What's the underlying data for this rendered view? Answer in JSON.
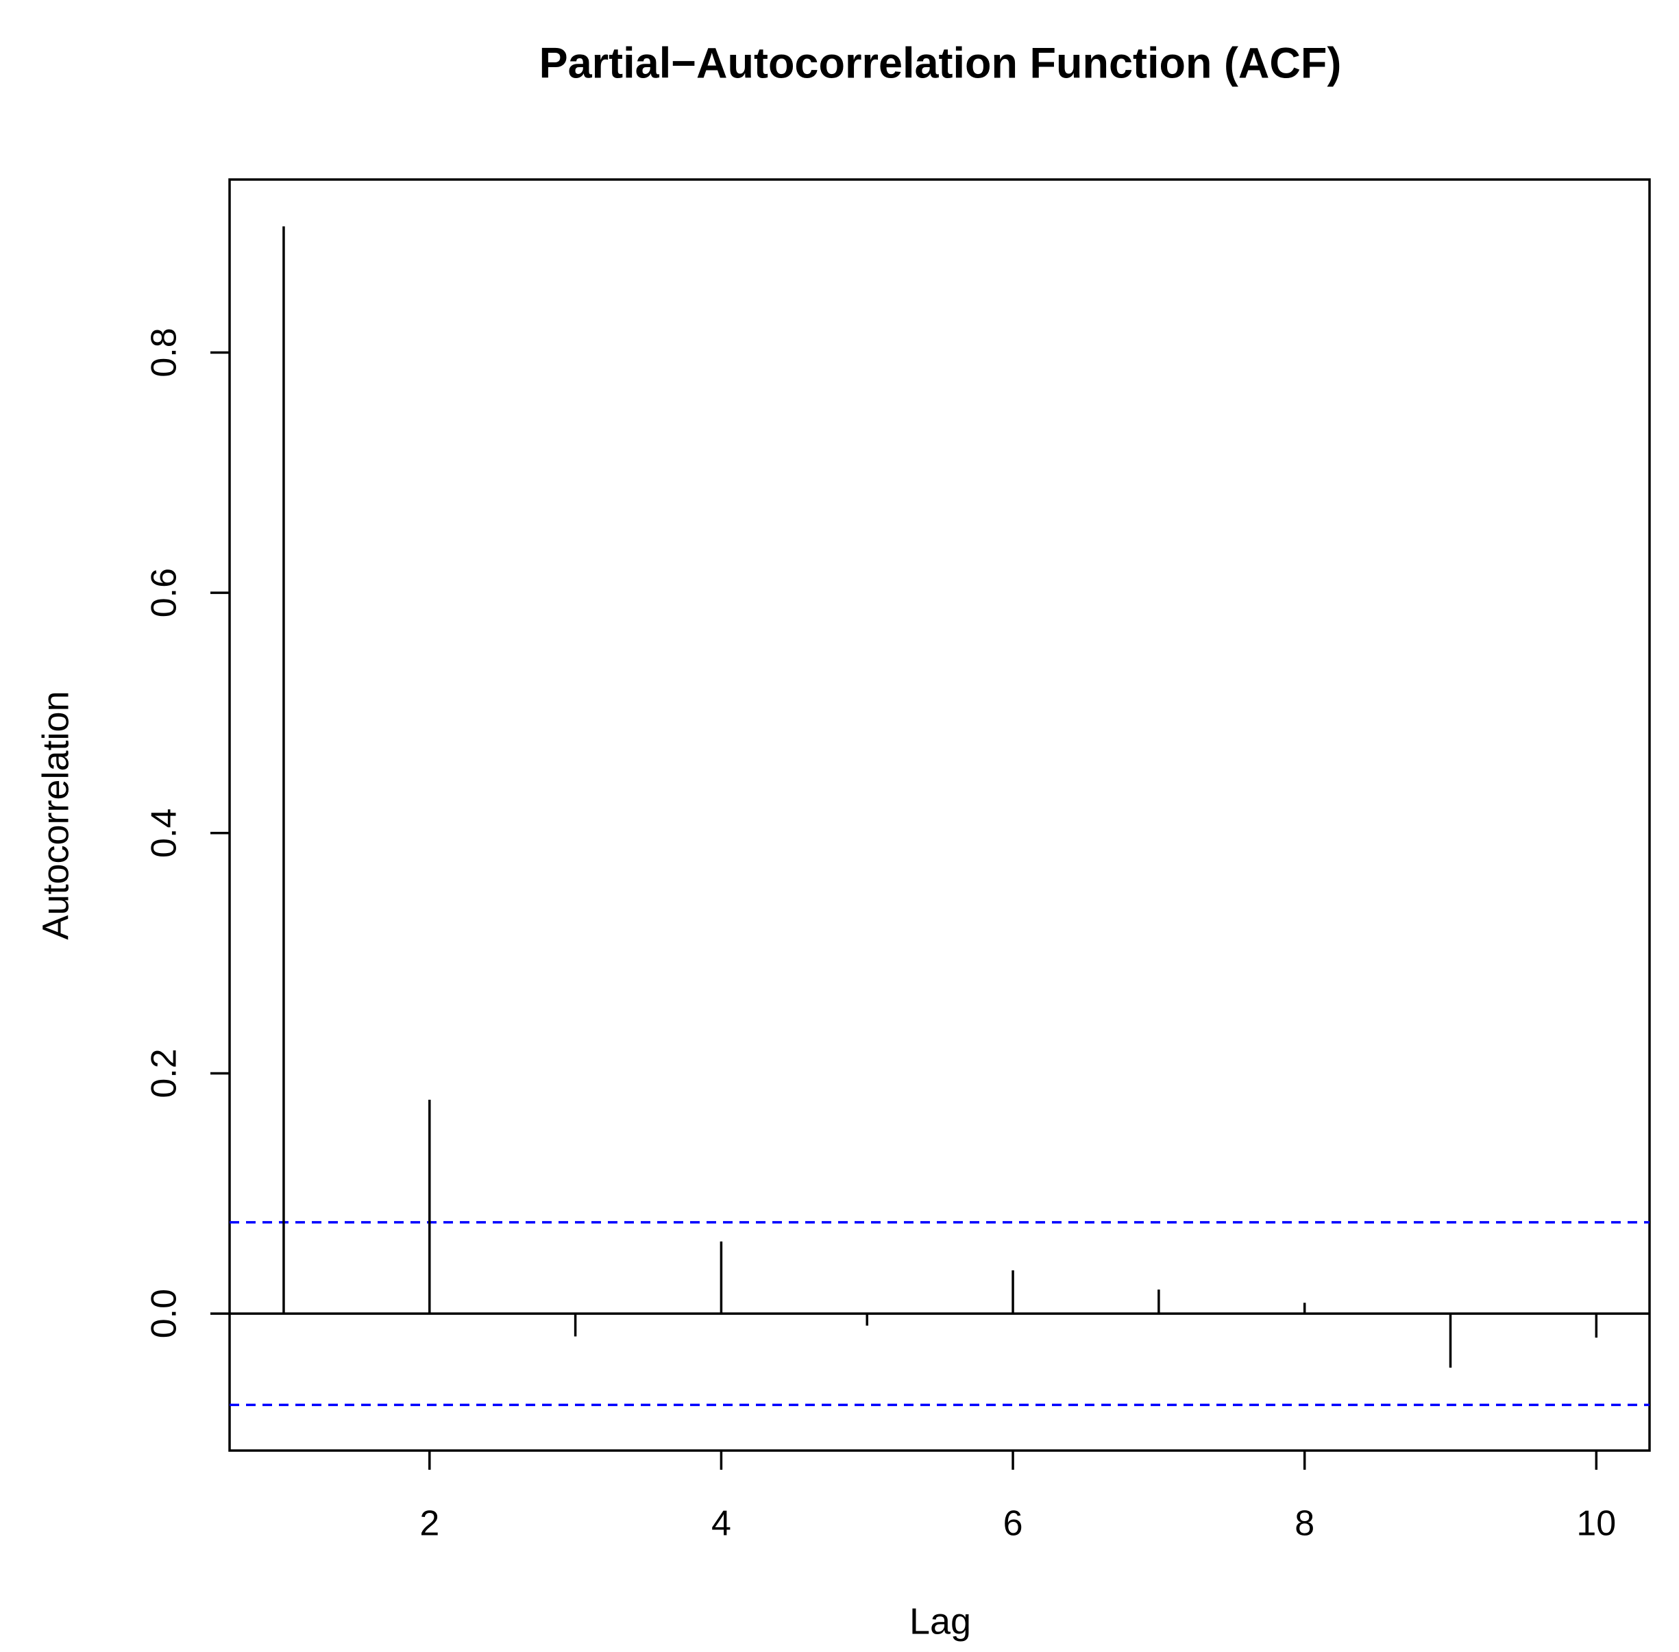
{
  "chart_data": {
    "type": "stem",
    "title": "Partial−Autocorrelation Function (ACF)",
    "x_label": "Lag",
    "y_label": "Autocorrelation",
    "x": [
      1,
      2,
      3,
      4,
      5,
      6,
      7,
      8,
      9,
      10
    ],
    "values": [
      0.905,
      0.178,
      -0.019,
      0.06,
      -0.01,
      0.036,
      0.02,
      0.009,
      -0.045,
      -0.02
    ],
    "color": "#000000",
    "confidence_bounds": [
      0.076,
      -0.076
    ],
    "bound_color": "#0000ff",
    "xlim": [
      0.629,
      10.365
    ],
    "xticks": [
      2,
      4,
      6,
      8,
      10
    ],
    "ylim": [
      -0.114,
      0.944
    ],
    "yticks": [
      {
        "value": 0,
        "label": "0.0"
      },
      0.2,
      0.4,
      0.6,
      0.8
    ]
  }
}
